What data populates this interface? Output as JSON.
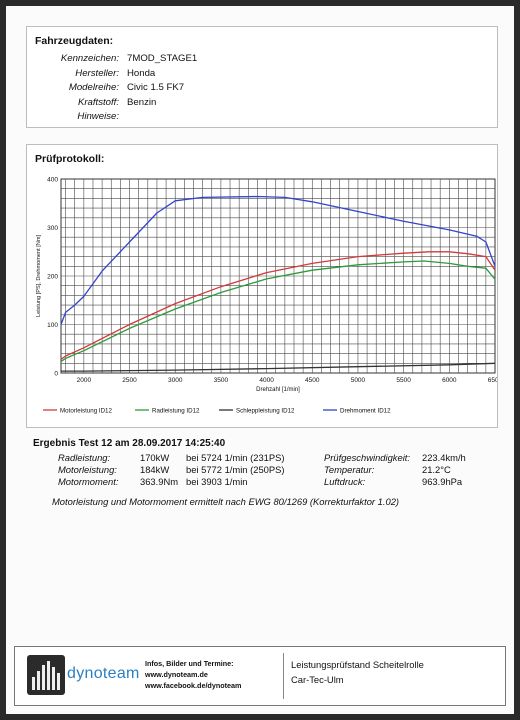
{
  "vehicle": {
    "title": "Fahrzeugdaten:",
    "rows": [
      {
        "label": "Kennzeichen:",
        "value": "7MOD_STAGE1"
      },
      {
        "label": "Hersteller:",
        "value": "Honda"
      },
      {
        "label": "Modelreihe:",
        "value": "Civic 1.5 FK7"
      },
      {
        "label": "Kraftstoff:",
        "value": "Benzin"
      },
      {
        "label": "Hinweise:",
        "value": ""
      }
    ]
  },
  "protocol": {
    "title": "Prüfprotokoll:"
  },
  "colors": {
    "motor": "#d23a3a",
    "rad": "#2e9a3a",
    "schlepp": "#333333",
    "dreh": "#3344cc",
    "grid": "#4a4a4a"
  },
  "chart_data": {
    "type": "line",
    "xlabel": "Drehzahl [1/min]",
    "ylabel": "Leistung [PS], Drehmoment [Nm]",
    "xlim": [
      1750,
      6500
    ],
    "ylim": [
      0,
      400
    ],
    "xticks": [
      2000,
      2500,
      3000,
      3500,
      4000,
      4500,
      5000,
      5500,
      6000,
      6500
    ],
    "yticks": [
      0,
      100,
      200,
      300,
      400
    ],
    "grid": true,
    "legend_position": "bottom",
    "series": [
      {
        "name": "Motorleistung ID12",
        "color_key": "motor",
        "x": [
          1750,
          1800,
          2000,
          2500,
          3000,
          3500,
          4000,
          4500,
          5000,
          5500,
          5772,
          6000,
          6200,
          6400,
          6500
        ],
        "y": [
          28,
          35,
          52,
          100,
          143,
          178,
          207,
          226,
          240,
          247,
          250,
          250,
          246,
          240,
          212
        ]
      },
      {
        "name": "Radleistung ID12",
        "color_key": "rad",
        "x": [
          1750,
          1800,
          2000,
          2500,
          3000,
          3500,
          4000,
          4500,
          5000,
          5500,
          5724,
          6000,
          6200,
          6400,
          6500
        ],
        "y": [
          24,
          30,
          46,
          92,
          132,
          166,
          194,
          212,
          223,
          229,
          231,
          226,
          220,
          216,
          193
        ]
      },
      {
        "name": "Schleppleistung ID12",
        "color_key": "schlepp",
        "x": [
          1750,
          2000,
          3000,
          4000,
          5000,
          6000,
          6500
        ],
        "y": [
          4,
          4,
          6,
          9,
          13,
          17,
          20
        ]
      },
      {
        "name": "Drehmoment ID12",
        "color_key": "dreh",
        "x": [
          1750,
          1800,
          1900,
          2000,
          2200,
          2500,
          2800,
          3000,
          3300,
          3903,
          4200,
          4500,
          5000,
          5500,
          6000,
          6300,
          6400,
          6500
        ],
        "y": [
          100,
          125,
          140,
          158,
          210,
          270,
          330,
          355,
          362,
          364,
          362,
          353,
          333,
          313,
          295,
          282,
          270,
          220
        ]
      }
    ]
  },
  "results": {
    "title": "Ergebnis Test 12 am 28.09.2017 14:25:40",
    "rows": [
      {
        "label": "Radleistung:",
        "value": "170kW",
        "detail": "bei 5724 1/min (231PS)"
      },
      {
        "label": "Motorleistung:",
        "value": "184kW",
        "detail": "bei 5772 1/min (250PS)"
      },
      {
        "label": "Motormoment:",
        "value": "363.9Nm",
        "detail": "bei 3903 1/min"
      }
    ],
    "env": [
      {
        "label": "Prüfgeschwindigkeit:",
        "value": "223.4km/h"
      },
      {
        "label": "Temperatur:",
        "value": "21.2°C"
      },
      {
        "label": "Luftdruck:",
        "value": "963.9hPa"
      }
    ],
    "note": "Motorleistung und Motormoment ermittelt nach EWG 80/1269 (Korrekturfaktor 1.02)"
  },
  "footer": {
    "logo_text": "dynoteam",
    "info_line1": "Infos, Bilder und Termine:",
    "info_line2": "www.dynoteam.de",
    "info_line3": "www.facebook.de/dynoteam",
    "right_line1": "Leistungsprüfstand Scheitelrolle",
    "right_line2": "Car-Tec-Ulm"
  }
}
